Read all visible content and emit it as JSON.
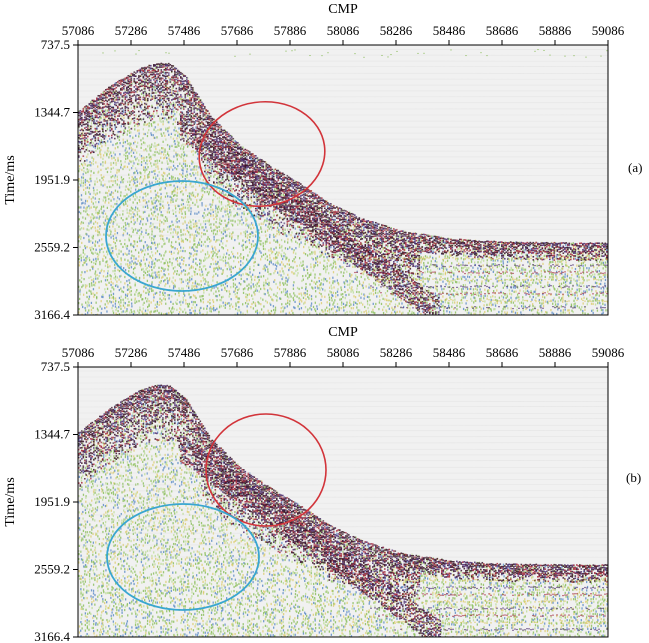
{
  "figure": {
    "panels": [
      {
        "id": "a",
        "label": "(a)",
        "x_axis_title": "CMP",
        "y_axis_title": "Time/ms",
        "x_ticks": [
          "57086",
          "57286",
          "57486",
          "57686",
          "57886",
          "58086",
          "58286",
          "58486",
          "58686",
          "58886",
          "59086"
        ],
        "y_ticks": [
          "737.5",
          "1344.7",
          "1951.9",
          "2559.2",
          "3166.4"
        ],
        "annotation_colors": {
          "red_ellipse": "#d2343a",
          "blue_ellipse": "#39a6d0"
        }
      },
      {
        "id": "b",
        "label": "(b)",
        "x_axis_title": "CMP",
        "y_axis_title": "Time/ms",
        "x_ticks": [
          "57086",
          "57286",
          "57486",
          "57686",
          "57886",
          "58086",
          "58286",
          "58486",
          "58686",
          "58886",
          "59086"
        ],
        "y_ticks": [
          "737.5",
          "1344.7",
          "1951.9",
          "2559.2",
          "3166.4"
        ],
        "annotation_colors": {
          "red_ellipse": "#d2343a",
          "blue_ellipse": "#39a6d0"
        }
      }
    ],
    "palette": {
      "dark": "#3a1228",
      "purple": "#4b2a6e",
      "red": "#a2283c",
      "yellow": "#d8c860",
      "green": "#7fb84a",
      "lightgreen": "#b6d98a",
      "blue": "#4a7fc0",
      "background": "#eeeeee"
    }
  }
}
